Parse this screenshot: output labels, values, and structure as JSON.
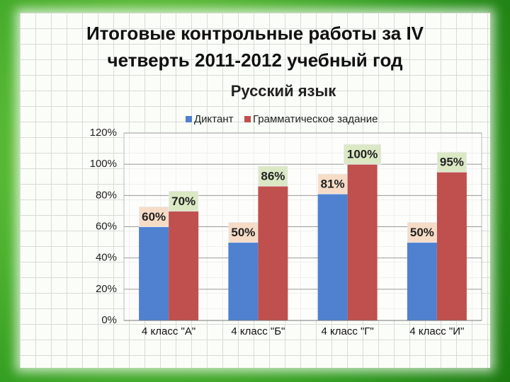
{
  "chart_data": {
    "type": "bar",
    "title": "Итоговые контрольные работы за IV четверть 2011-2012 учебный год",
    "subtitle": "Русский язык",
    "categories": [
      "4 класс \"А\"",
      "4 класс \"Б\"",
      "4 класс \"Г\"",
      "4 класс \"И\""
    ],
    "series": [
      {
        "name": "Диктант",
        "color": "#4f81d0",
        "values": [
          60,
          50,
          81,
          50
        ],
        "value_labels": [
          "60%",
          "50%",
          "81%",
          "50%"
        ]
      },
      {
        "name": "Грамматическое задание",
        "color": "#c0504d",
        "values": [
          70,
          86,
          100,
          95
        ],
        "value_labels": [
          "70%",
          "86%",
          "100%",
          "95%"
        ]
      }
    ],
    "ylim": [
      0,
      120
    ],
    "yticks": [
      {
        "value": 0,
        "label": "0%"
      },
      {
        "value": 20,
        "label": "20%"
      },
      {
        "value": 40,
        "label": "40%"
      },
      {
        "value": 60,
        "label": "60%"
      },
      {
        "value": 80,
        "label": "80%"
      },
      {
        "value": 100,
        "label": "100%"
      },
      {
        "value": 120,
        "label": "120%"
      }
    ],
    "grid": true,
    "legend": "top"
  }
}
